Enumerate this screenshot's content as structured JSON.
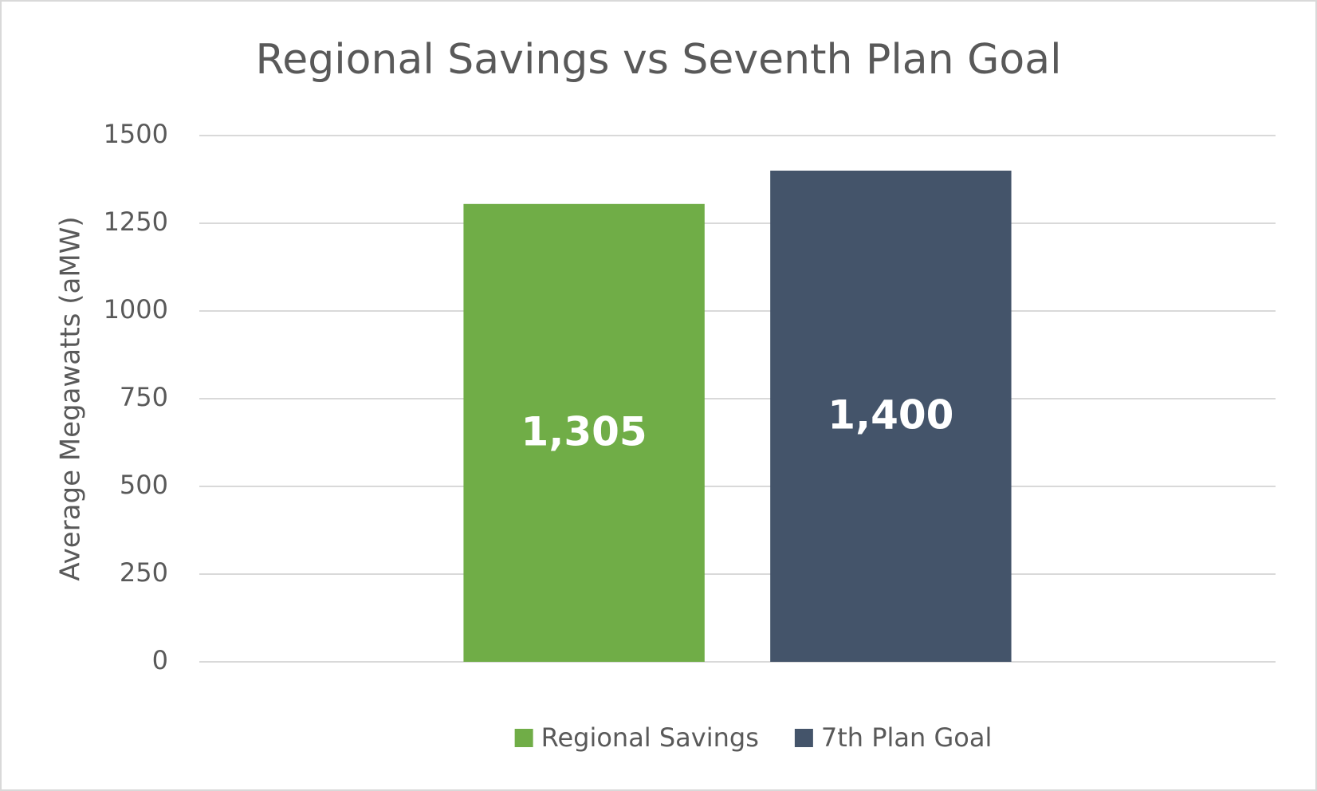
{
  "chart_data": {
    "type": "bar",
    "title": "Regional Savings vs Seventh Plan Goal",
    "y_label": "Average Megawatts (aMW)",
    "categories": [
      null
    ],
    "series": [
      {
        "name": "Regional Savings",
        "color": "#70ad47",
        "values": [
          1305
        ],
        "value_labels": [
          "1,305"
        ]
      },
      {
        "name": "7th Plan Goal",
        "color": "#44546a",
        "values": [
          1400
        ],
        "value_labels": [
          "1,400"
        ]
      }
    ],
    "ylim": [
      0,
      1500
    ],
    "yticks": [
      0,
      250,
      500,
      750,
      1000,
      1250,
      1500
    ],
    "grid": true,
    "legend": "bottom"
  }
}
